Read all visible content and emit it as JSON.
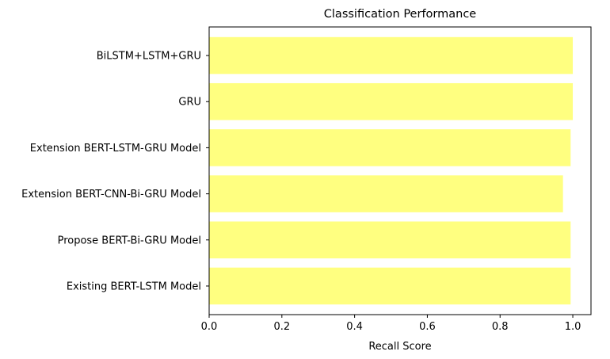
{
  "chart_data": {
    "type": "bar",
    "orientation": "horizontal",
    "title": "Classification Performance",
    "xlabel": "Recall Score",
    "ylabel": "",
    "xlim": [
      0.0,
      1.05
    ],
    "xticks": [
      "0.0",
      "0.2",
      "0.4",
      "0.6",
      "0.8",
      "1.0"
    ],
    "grid": false,
    "bar_color": "#ffff80",
    "categories": [
      "Existing BERT-LSTM Model",
      "Propose BERT-Bi-GRU Model",
      "Extension BERT-CNN-Bi-GRU Model",
      "Extension BERT-LSTM-GRU Model",
      "GRU",
      "BiLSTM+LSTM+GRU"
    ],
    "values": [
      0.994,
      0.994,
      0.973,
      0.994,
      1.0,
      1.0
    ]
  }
}
